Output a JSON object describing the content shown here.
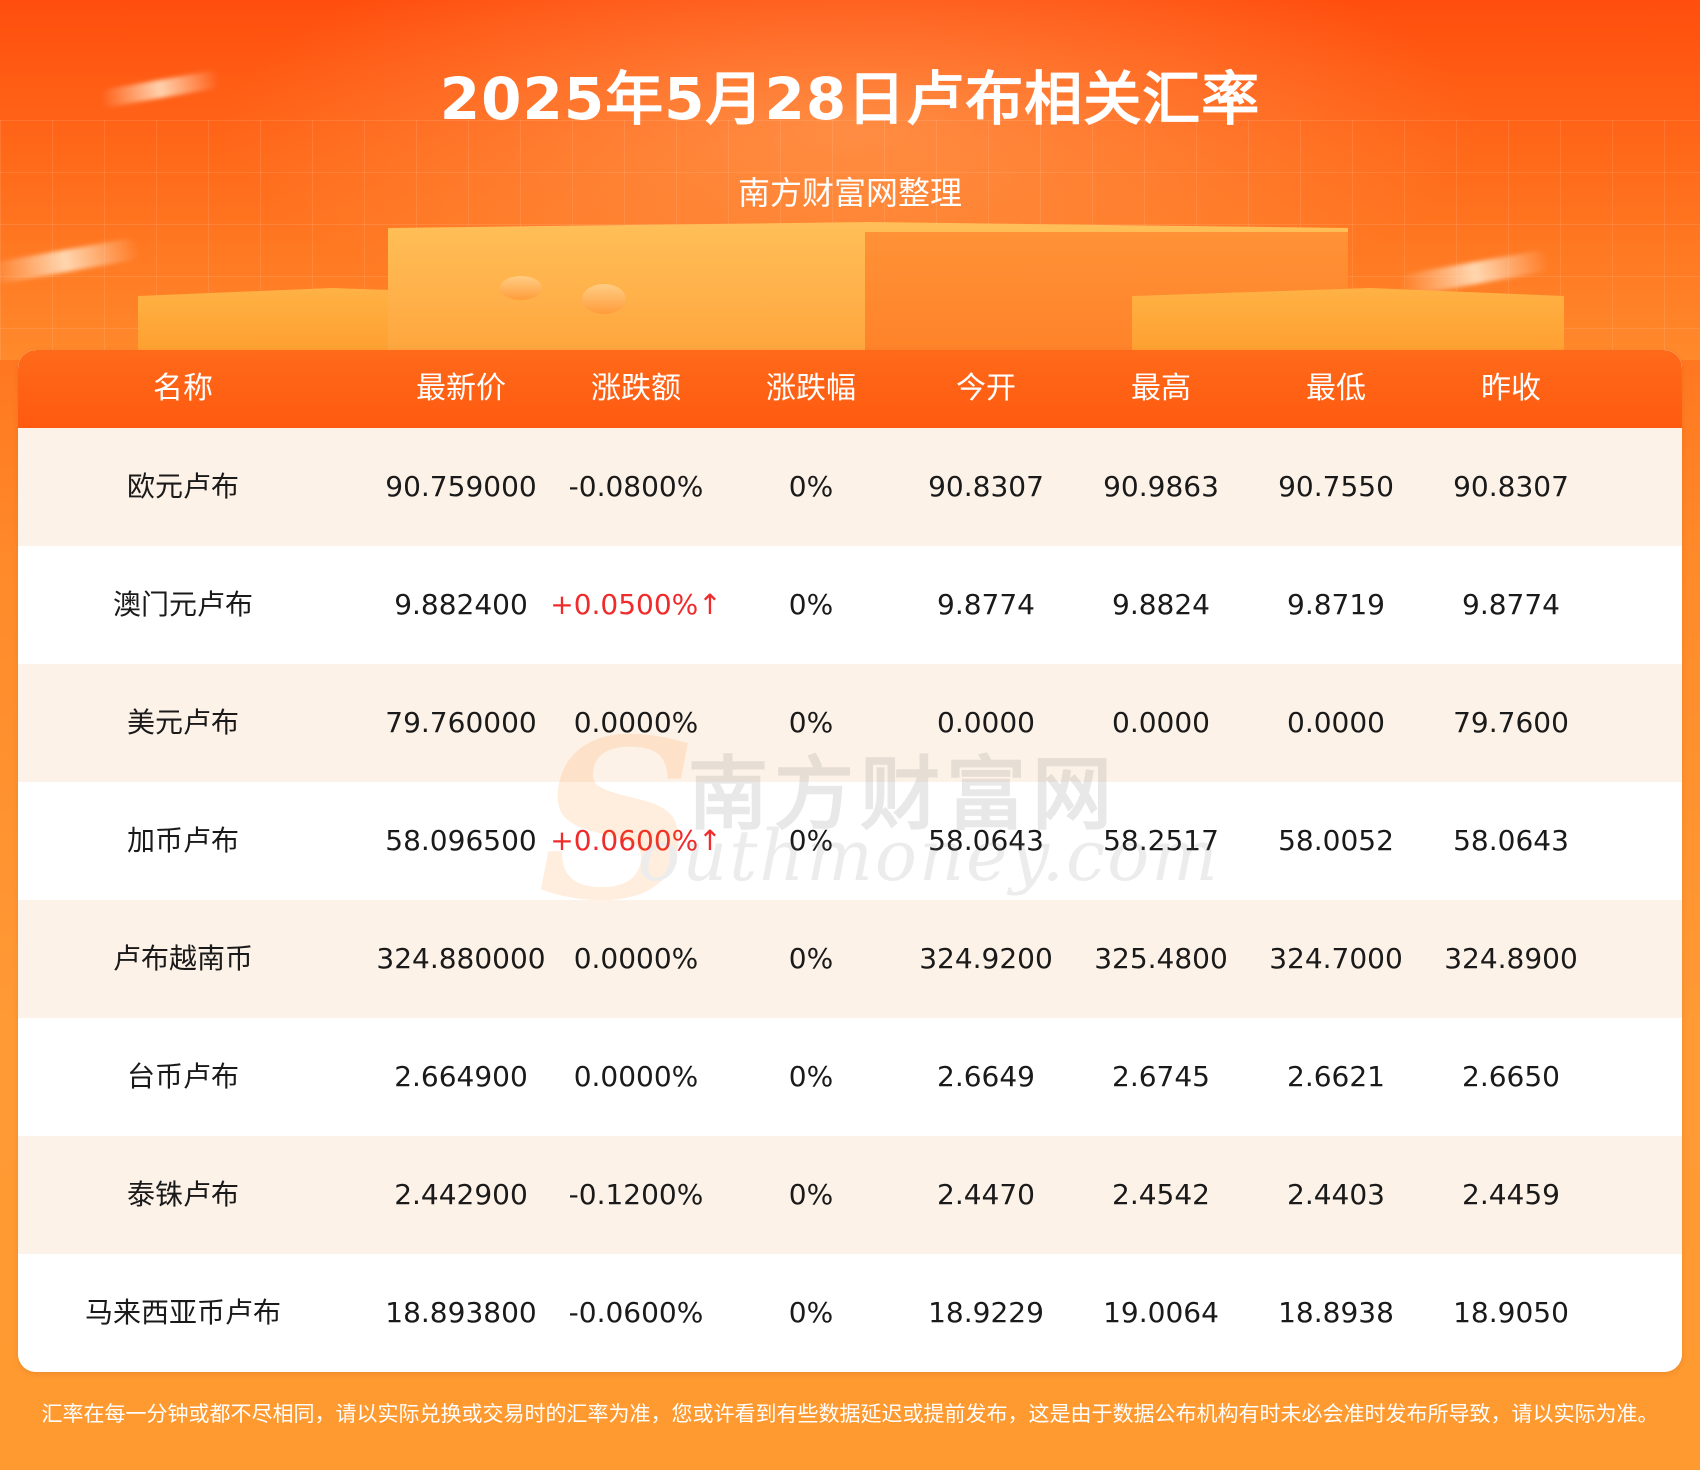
{
  "header": {
    "title": "2025年5月28日卢布相关汇率",
    "subtitle": "南方财富网整理"
  },
  "watermark": {
    "letter": "S",
    "brand_cn": "南方财富网",
    "brand_en": "outhmoney.com"
  },
  "colors": {
    "accent": "#ff5a10",
    "row_shaded": "#fdf2e8",
    "up": "#ef2b2b"
  },
  "table": {
    "columns": [
      "名称",
      "最新价",
      "涨跌额",
      "涨跌幅",
      "今开",
      "最高",
      "最低",
      "昨收"
    ],
    "rows": [
      {
        "name": "欧元卢布",
        "latest": "90.759000",
        "change": "-0.0800%",
        "pct": "0%",
        "open": "90.8307",
        "high": "90.9863",
        "low": "90.7550",
        "prev": "90.8307"
      },
      {
        "name": "澳门元卢布",
        "latest": "9.882400",
        "change": "+0.0500%↑",
        "pct": "0%",
        "open": "9.8774",
        "high": "9.8824",
        "low": "9.8719",
        "prev": "9.8774"
      },
      {
        "name": "美元卢布",
        "latest": "79.760000",
        "change": "0.0000%",
        "pct": "0%",
        "open": "0.0000",
        "high": "0.0000",
        "low": "0.0000",
        "prev": "79.7600"
      },
      {
        "name": "加币卢布",
        "latest": "58.096500",
        "change": "+0.0600%↑",
        "pct": "0%",
        "open": "58.0643",
        "high": "58.2517",
        "low": "58.0052",
        "prev": "58.0643"
      },
      {
        "name": "卢布越南币",
        "latest": "324.880000",
        "change": "0.0000%",
        "pct": "0%",
        "open": "324.9200",
        "high": "325.4800",
        "low": "324.7000",
        "prev": "324.8900"
      },
      {
        "name": "台币卢布",
        "latest": "2.664900",
        "change": "0.0000%",
        "pct": "0%",
        "open": "2.6649",
        "high": "2.6745",
        "low": "2.6621",
        "prev": "2.6650"
      },
      {
        "name": "泰铢卢布",
        "latest": "2.442900",
        "change": "-0.1200%",
        "pct": "0%",
        "open": "2.4470",
        "high": "2.4542",
        "low": "2.4403",
        "prev": "2.4459"
      },
      {
        "name": "马来西亚币卢布",
        "latest": "18.893800",
        "change": "-0.0600%",
        "pct": "0%",
        "open": "18.9229",
        "high": "19.0064",
        "low": "18.8938",
        "prev": "18.9050"
      }
    ]
  },
  "footer": {
    "note": "汇率在每一分钟或都不尽相同，请以实际兑换或交易时的汇率为准，您或许看到有些数据延迟或提前发布，这是由于数据公布机构有时未必会准时发布所导致，请以实际为准。"
  }
}
